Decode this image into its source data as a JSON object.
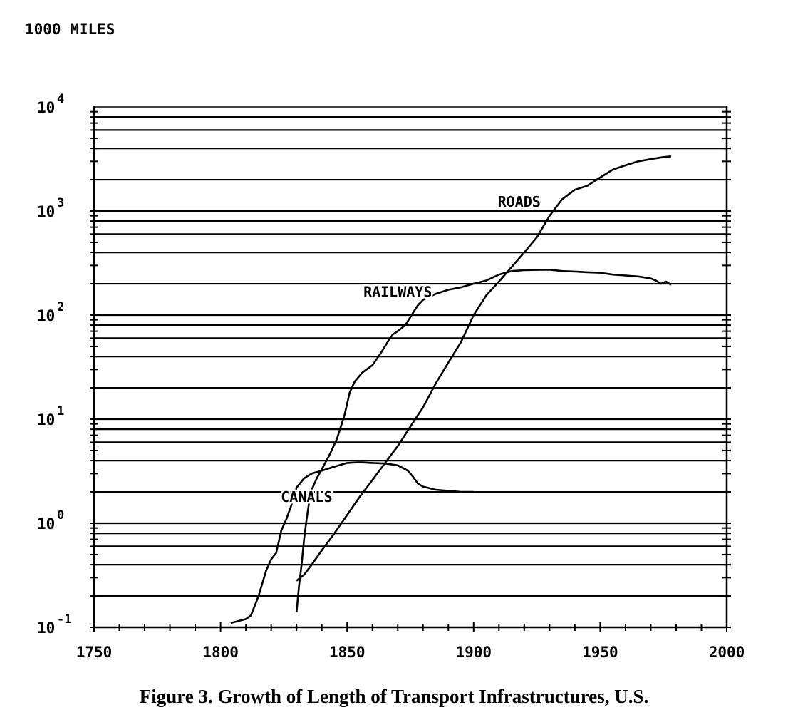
{
  "chart_data": {
    "type": "line",
    "title": "",
    "ylabel": "1000 MILES",
    "xlabel": "",
    "x_ticks": [
      "1750",
      "1800",
      "1850",
      "1900",
      "1950",
      "2000"
    ],
    "xlim": [
      1750,
      2000
    ],
    "y_scale": "log",
    "ylim": [
      0.1,
      10000
    ],
    "y_tick_labels": [
      {
        "value": 0.1,
        "base": "10",
        "exp": "-1"
      },
      {
        "value": 1,
        "base": "10",
        "exp": "0"
      },
      {
        "value": 10,
        "base": "10",
        "exp": "1"
      },
      {
        "value": 100,
        "base": "10",
        "exp": "2"
      },
      {
        "value": 1000,
        "base": "10",
        "exp": "3"
      },
      {
        "value": 10000,
        "base": "10",
        "exp": "4"
      }
    ],
    "grid": "horizontal",
    "series": [
      {
        "name": "CANALS",
        "x": [
          1804,
          1810,
          1812,
          1815,
          1818,
          1820,
          1822,
          1824,
          1826,
          1828,
          1830,
          1833,
          1836,
          1840,
          1845,
          1850,
          1855,
          1860,
          1865,
          1870,
          1874,
          1876,
          1878,
          1880,
          1885,
          1890,
          1895,
          1900
        ],
        "y": [
          0.11,
          0.12,
          0.13,
          0.2,
          0.35,
          0.45,
          0.52,
          0.85,
          1.1,
          1.5,
          2.2,
          2.7,
          3.0,
          3.2,
          3.5,
          3.8,
          3.85,
          3.8,
          3.75,
          3.6,
          3.2,
          2.8,
          2.4,
          2.25,
          2.1,
          2.05,
          2.0,
          2.0
        ]
      },
      {
        "name": "RAILWAYS",
        "x": [
          1830,
          1831,
          1832,
          1833,
          1834,
          1835,
          1836,
          1838,
          1840,
          1843,
          1846,
          1849,
          1851,
          1853,
          1856,
          1860,
          1863,
          1866,
          1868,
          1870,
          1873,
          1876,
          1878,
          1880,
          1885,
          1890,
          1895,
          1900,
          1905,
          1910,
          1915,
          1920,
          1925,
          1930,
          1935,
          1940,
          1945,
          1950,
          1955,
          1960,
          1965,
          1970,
          1972,
          1974,
          1976,
          1978
        ],
        "y": [
          0.14,
          0.25,
          0.4,
          0.7,
          1.1,
          1.6,
          2.1,
          2.7,
          3.3,
          4.5,
          6.5,
          11,
          18,
          23,
          28,
          33,
          42,
          55,
          65,
          70,
          80,
          105,
          125,
          140,
          160,
          175,
          185,
          200,
          215,
          245,
          265,
          270,
          272,
          273,
          265,
          262,
          258,
          255,
          245,
          240,
          235,
          225,
          215,
          200,
          210,
          195
        ]
      },
      {
        "name": "ROADS",
        "x": [
          1830,
          1833,
          1836,
          1840,
          1845,
          1850,
          1855,
          1860,
          1865,
          1870,
          1875,
          1880,
          1885,
          1890,
          1895,
          1900,
          1905,
          1910,
          1915,
          1920,
          1925,
          1930,
          1935,
          1940,
          1945,
          1950,
          1955,
          1960,
          1965,
          1970,
          1975,
          1978
        ],
        "y": [
          0.28,
          0.32,
          0.4,
          0.55,
          0.8,
          1.2,
          1.8,
          2.6,
          3.8,
          5.5,
          8.5,
          13,
          22,
          35,
          55,
          100,
          155,
          210,
          290,
          400,
          560,
          900,
          1300,
          1600,
          1750,
          2100,
          2500,
          2750,
          3000,
          3150,
          3300,
          3350
        ]
      }
    ],
    "annotations": [
      {
        "text": "ROADS",
        "x": 1918,
        "y": 1100
      },
      {
        "text": "RAILWAYS",
        "x": 1870,
        "y": 150
      },
      {
        "text": "CANALS",
        "x": 1834,
        "y": 1.6
      }
    ],
    "gridlines_y": [
      0.2,
      0.4,
      0.6,
      0.8,
      1,
      2,
      4,
      6,
      8,
      10,
      20,
      40,
      60,
      80,
      100,
      200,
      400,
      600,
      800,
      1000,
      2000,
      4000,
      6000,
      8000
    ]
  },
  "caption": "Figure 3. Growth of Length of Transport Infrastructures, U.S."
}
